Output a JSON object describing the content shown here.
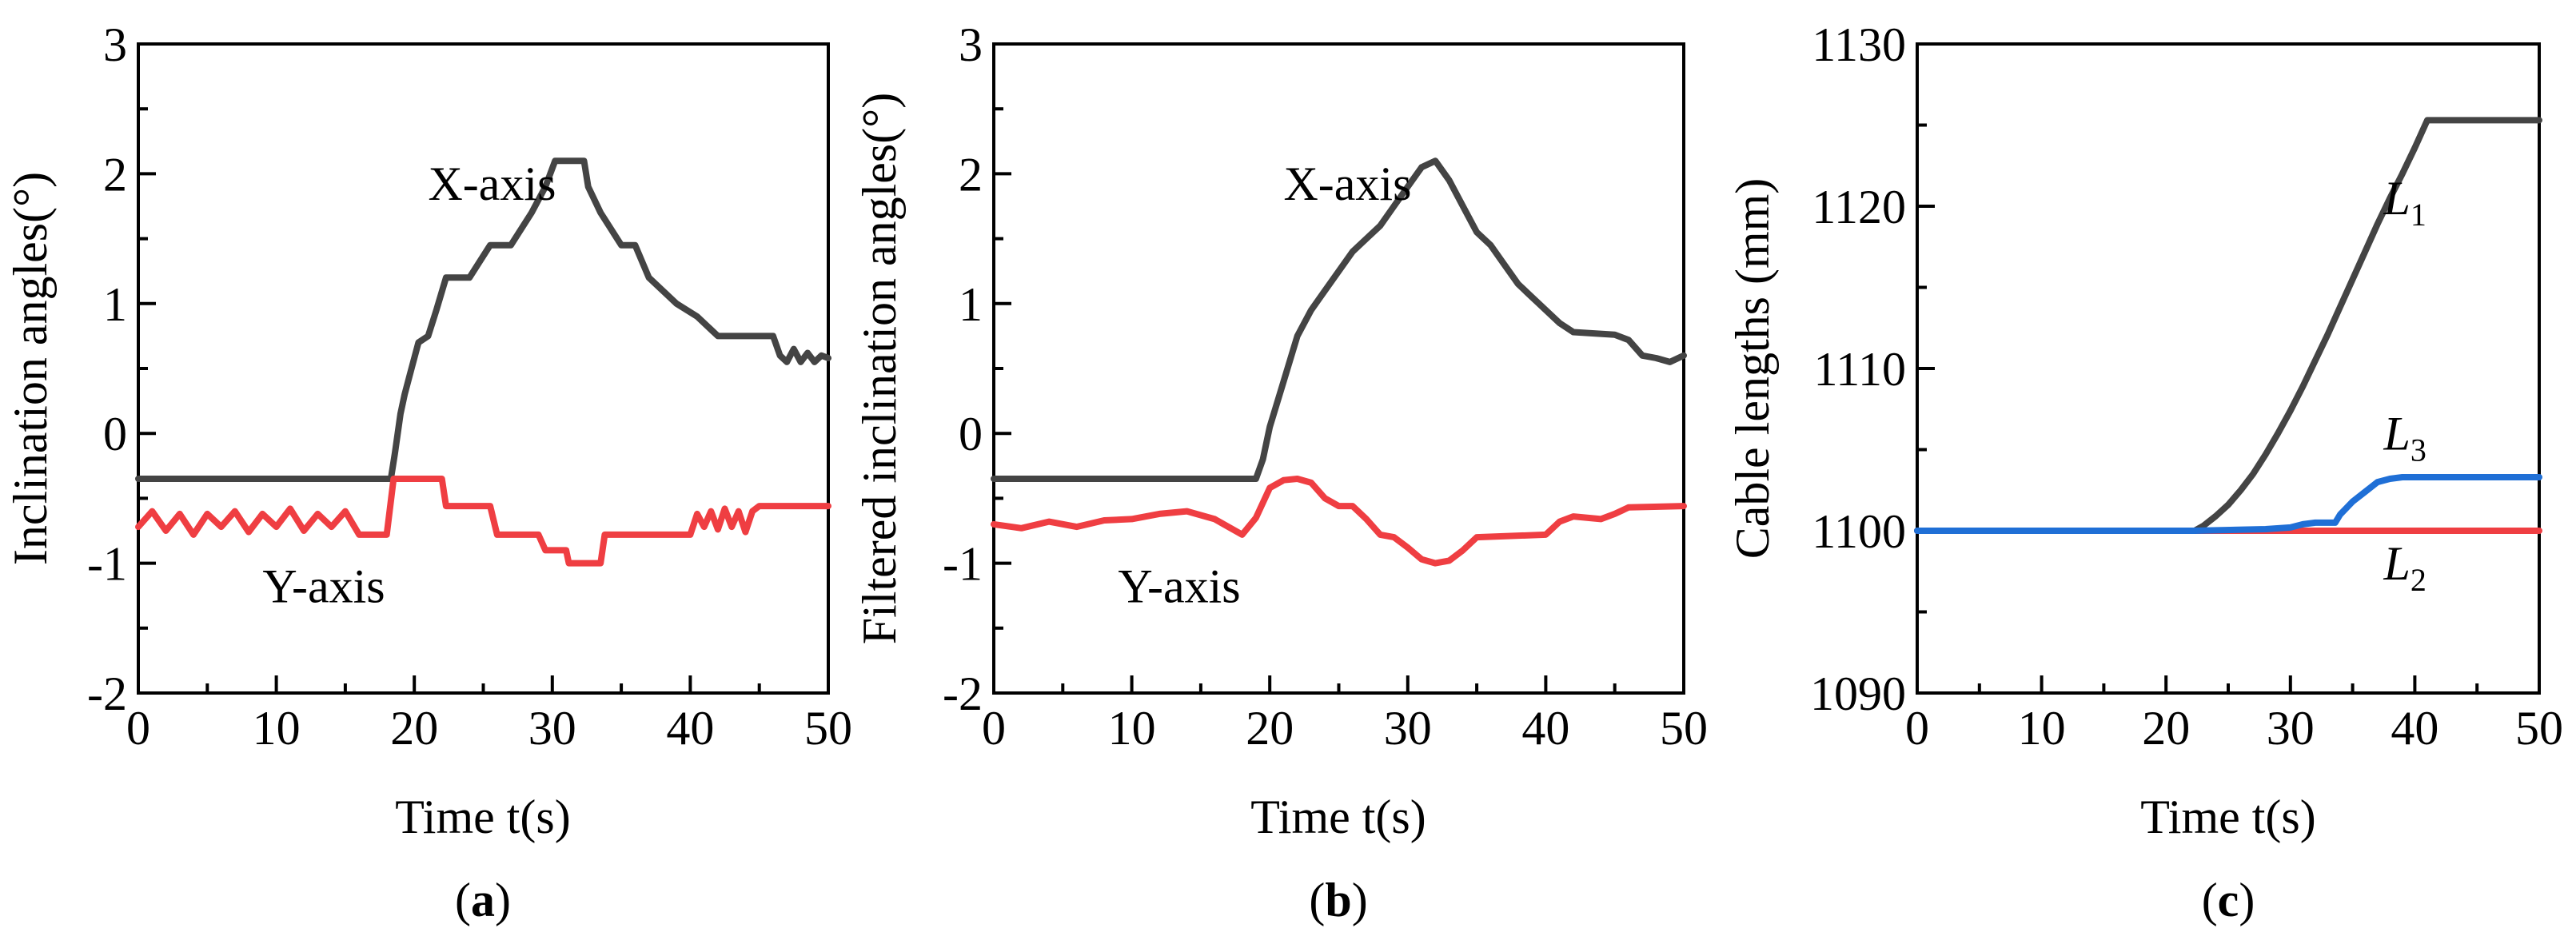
{
  "chart_data": [
    {
      "type": "line",
      "panel_tag": "(a)",
      "panel_letter": "a",
      "xlabel": "Time t(s)",
      "ylabel": "Inclination angles(°)",
      "xlim": [
        0,
        50
      ],
      "ylim": [
        -2,
        3
      ],
      "xticks": [
        0,
        10,
        20,
        30,
        40,
        50
      ],
      "xtick_labels": [
        "0",
        "10",
        "20",
        "30",
        "40",
        "50"
      ],
      "yticks": [
        -2,
        -1,
        0,
        1,
        2,
        3
      ],
      "ytick_labels": [
        "-2",
        "-1",
        "0",
        "1",
        "2",
        "3"
      ],
      "series": [
        {
          "name": "X-axis",
          "color": "#444444",
          "x": [
            0,
            18.3,
            18.6,
            19.0,
            19.3,
            19.8,
            20.3,
            21.0,
            21.6,
            22.3,
            23.0,
            24.0,
            25.5,
            27.0,
            28.5,
            29.5,
            30.2,
            32.3,
            32.6,
            33.5,
            35.0,
            36.0,
            37.0,
            39.0,
            40.5,
            42.0,
            45.0,
            46.0,
            46.5,
            47.0,
            47.5,
            48.0,
            48.5,
            49.0,
            49.5,
            50.0
          ],
          "y": [
            -0.35,
            -0.35,
            -0.15,
            0.15,
            0.3,
            0.5,
            0.7,
            0.75,
            0.95,
            1.2,
            1.2,
            1.2,
            1.45,
            1.45,
            1.7,
            1.9,
            2.1,
            2.1,
            1.9,
            1.7,
            1.45,
            1.45,
            1.2,
            1.0,
            0.9,
            0.75,
            0.75,
            0.75,
            0.6,
            0.55,
            0.65,
            0.55,
            0.62,
            0.55,
            0.6,
            0.58
          ]
        },
        {
          "name": "Y-axis",
          "color": "#ef3e42",
          "x": [
            0,
            1,
            2,
            3,
            4,
            5,
            6,
            7,
            8,
            9,
            10,
            11,
            12,
            13,
            14,
            15,
            16,
            17,
            18.0,
            18.5,
            22.0,
            22.3,
            25.5,
            26.0,
            29.0,
            29.5,
            31.0,
            31.2,
            33.5,
            33.8,
            40.0,
            40.5,
            41.0,
            41.5,
            42.0,
            42.5,
            43.0,
            43.5,
            44.0,
            44.5,
            45.0,
            50.0
          ],
          "y": [
            -0.72,
            -0.6,
            -0.75,
            -0.62,
            -0.78,
            -0.62,
            -0.72,
            -0.6,
            -0.76,
            -0.62,
            -0.72,
            -0.58,
            -0.75,
            -0.62,
            -0.72,
            -0.6,
            -0.78,
            -0.78,
            -0.78,
            -0.35,
            -0.35,
            -0.56,
            -0.56,
            -0.78,
            -0.78,
            -0.9,
            -0.9,
            -1.0,
            -1.0,
            -0.78,
            -0.78,
            -0.62,
            -0.72,
            -0.6,
            -0.74,
            -0.58,
            -0.72,
            -0.6,
            -0.76,
            -0.6,
            -0.56,
            -0.56
          ]
        }
      ],
      "annotations": [
        {
          "text": "X-axis",
          "x": 21.0,
          "y": 1.8
        },
        {
          "text": "Y-axis",
          "x": 9.0,
          "y": -1.3
        }
      ]
    },
    {
      "type": "line",
      "panel_tag": "(b)",
      "panel_letter": "b",
      "xlabel": "Time t(s)",
      "ylabel": "Filtered inclination angles(°)",
      "xlim": [
        0,
        50
      ],
      "ylim": [
        -2,
        3
      ],
      "xticks": [
        0,
        10,
        20,
        30,
        40,
        50
      ],
      "xtick_labels": [
        "0",
        "10",
        "20",
        "30",
        "40",
        "50"
      ],
      "yticks": [
        -2,
        -1,
        0,
        1,
        2,
        3
      ],
      "ytick_labels": [
        "-2",
        "-1",
        "0",
        "1",
        "2",
        "3"
      ],
      "series": [
        {
          "name": "X-axis",
          "color": "#444444",
          "x": [
            0,
            19.0,
            19.5,
            20.0,
            21.0,
            22.0,
            23.0,
            24.0,
            25.0,
            26.0,
            27.0,
            28.0,
            29.0,
            30.0,
            31.0,
            32.0,
            33.0,
            34.0,
            35.0,
            36.0,
            37.0,
            38.0,
            39.0,
            40.0,
            41.0,
            42.0,
            45.0,
            46.0,
            47.0,
            48.0,
            49.0,
            50.0
          ],
          "y": [
            -0.35,
            -0.35,
            -0.2,
            0.05,
            0.4,
            0.75,
            0.95,
            1.1,
            1.25,
            1.4,
            1.5,
            1.6,
            1.75,
            1.9,
            2.05,
            2.1,
            1.95,
            1.75,
            1.55,
            1.45,
            1.3,
            1.15,
            1.05,
            0.95,
            0.85,
            0.78,
            0.76,
            0.72,
            0.6,
            0.58,
            0.55,
            0.6
          ]
        },
        {
          "name": "Y-axis",
          "color": "#ef3e42",
          "x": [
            0,
            2,
            4,
            6,
            8,
            10,
            12,
            14,
            16,
            18,
            19.0,
            20.0,
            21.0,
            22.0,
            23.0,
            24.0,
            25.0,
            26.0,
            27.0,
            28.0,
            29.0,
            30.0,
            31.0,
            32.0,
            33.0,
            34.0,
            35.0,
            40.0,
            41.0,
            42.0,
            44.0,
            45.0,
            46.0,
            50.0
          ],
          "y": [
            -0.7,
            -0.73,
            -0.68,
            -0.72,
            -0.67,
            -0.66,
            -0.62,
            -0.6,
            -0.66,
            -0.78,
            -0.65,
            -0.42,
            -0.36,
            -0.35,
            -0.38,
            -0.5,
            -0.56,
            -0.56,
            -0.66,
            -0.78,
            -0.8,
            -0.88,
            -0.97,
            -1.0,
            -0.98,
            -0.9,
            -0.8,
            -0.78,
            -0.68,
            -0.64,
            -0.66,
            -0.62,
            -0.57,
            -0.56
          ]
        }
      ],
      "annotations": [
        {
          "text": "X-axis",
          "x": 21.0,
          "y": 1.8
        },
        {
          "text": "Y-axis",
          "x": 9.0,
          "y": -1.3
        }
      ]
    },
    {
      "type": "line",
      "panel_tag": "(c)",
      "panel_letter": "c",
      "xlabel": "Time t(s)",
      "ylabel": "Cable lengths (mm)",
      "xlim": [
        0,
        50
      ],
      "ylim": [
        1090,
        1130
      ],
      "xticks": [
        0,
        10,
        20,
        30,
        40,
        50
      ],
      "xtick_labels": [
        "0",
        "10",
        "20",
        "30",
        "40",
        "50"
      ],
      "yticks": [
        1090,
        1100,
        1110,
        1120,
        1130
      ],
      "ytick_labels": [
        "1090",
        "1100",
        "1110",
        "1120",
        "1130"
      ],
      "series": [
        {
          "name": "L2",
          "color": "#ef3e42",
          "x": [
            0,
            50
          ],
          "y": [
            1100,
            1100
          ]
        },
        {
          "name": "L1",
          "color": "#444444",
          "x": [
            0,
            22.3,
            23.0,
            24.0,
            25.0,
            26.0,
            27.0,
            28.0,
            29.0,
            30.0,
            31.0,
            32.0,
            33.0,
            34.0,
            35.0,
            36.0,
            37.0,
            38.0,
            39.0,
            40.0,
            41.0,
            50.0
          ],
          "y": [
            1100,
            1100,
            1100.3,
            1100.9,
            1101.6,
            1102.5,
            1103.5,
            1104.7,
            1106.0,
            1107.4,
            1108.9,
            1110.5,
            1112.1,
            1113.8,
            1115.5,
            1117.2,
            1118.9,
            1120.5,
            1122.0,
            1123.6,
            1125.3,
            1125.3
          ]
        },
        {
          "name": "L3",
          "color": "#1f6fd6",
          "x": [
            0,
            22.3,
            28.0,
            30.0,
            31.0,
            32.0,
            33.0,
            33.6,
            34.0,
            35.0,
            36.0,
            37.0,
            38.0,
            39.0,
            40.0,
            50.0
          ],
          "y": [
            1100,
            1100,
            1100.1,
            1100.2,
            1100.4,
            1100.5,
            1100.5,
            1100.5,
            1101.0,
            1101.8,
            1102.4,
            1103.0,
            1103.2,
            1103.3,
            1103.3,
            1103.3
          ]
        }
      ],
      "annotations": [
        {
          "text": "L",
          "sub": "1",
          "x": 37.5,
          "y": 1119.5
        },
        {
          "text": "L",
          "sub": "3",
          "x": 37.5,
          "y": 1105.0
        },
        {
          "text": "L",
          "sub": "2",
          "x": 37.5,
          "y": 1097.0
        }
      ]
    }
  ]
}
